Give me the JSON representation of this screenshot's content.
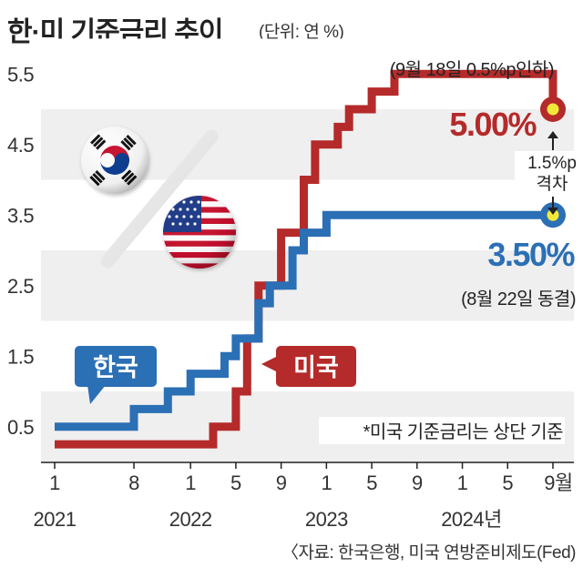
{
  "header": {
    "title": "한·미 기준금리 추이",
    "unit": "(단위: 연 %)"
  },
  "footer": {
    "source": "〈자료: 한국은행, 미국 연방준비제도(Fed)"
  },
  "colors": {
    "korea": "#2b6fb5",
    "usa": "#b52a2a",
    "band": "#efefef",
    "marker_fill": "#f2e83a"
  },
  "chart_data": {
    "type": "line",
    "title": "한·미 기준금리 추이",
    "ylabel": "(단위: 연 %)",
    "ylim": [
      0,
      6
    ],
    "y_ticks": [
      "0.5",
      "1.5",
      "2.5",
      "3.5",
      "4.5",
      "5.5"
    ],
    "x_ticks": [
      {
        "label": "1",
        "year": "2021",
        "date": "2021-01"
      },
      {
        "label": "8",
        "year": "",
        "date": "2021-08"
      },
      {
        "label": "1",
        "year": "2022",
        "date": "2022-01"
      },
      {
        "label": "5",
        "year": "",
        "date": "2022-05"
      },
      {
        "label": "9",
        "year": "",
        "date": "2022-09"
      },
      {
        "label": "1",
        "year": "2023",
        "date": "2023-01"
      },
      {
        "label": "5",
        "year": "",
        "date": "2023-05"
      },
      {
        "label": "9",
        "year": "",
        "date": "2023-09"
      },
      {
        "label": "1",
        "year": "2024년",
        "date": "2024-01"
      },
      {
        "label": "5",
        "year": "",
        "date": "2024-05"
      },
      {
        "label": "9월",
        "year": "",
        "date": "2024-09"
      }
    ],
    "series": [
      {
        "name": "한국",
        "color": "#2b6fb5",
        "points": [
          {
            "date": "2021-01",
            "value": 0.5
          },
          {
            "date": "2021-08",
            "value": 0.75
          },
          {
            "date": "2021-11",
            "value": 1.0
          },
          {
            "date": "2022-01",
            "value": 1.25
          },
          {
            "date": "2022-04",
            "value": 1.5
          },
          {
            "date": "2022-05",
            "value": 1.75
          },
          {
            "date": "2022-07",
            "value": 2.25
          },
          {
            "date": "2022-08",
            "value": 2.5
          },
          {
            "date": "2022-10",
            "value": 3.0
          },
          {
            "date": "2022-11",
            "value": 3.25
          },
          {
            "date": "2023-01",
            "value": 3.5
          },
          {
            "date": "2024-09",
            "value": 3.5
          }
        ]
      },
      {
        "name": "미국",
        "color": "#b52a2a",
        "points": [
          {
            "date": "2021-01",
            "value": 0.25
          },
          {
            "date": "2022-03",
            "value": 0.5
          },
          {
            "date": "2022-05",
            "value": 1.0
          },
          {
            "date": "2022-06",
            "value": 1.75
          },
          {
            "date": "2022-07",
            "value": 2.5
          },
          {
            "date": "2022-09",
            "value": 3.25
          },
          {
            "date": "2022-11",
            "value": 4.0
          },
          {
            "date": "2022-12",
            "value": 4.5
          },
          {
            "date": "2023-02",
            "value": 4.75
          },
          {
            "date": "2023-03",
            "value": 5.0
          },
          {
            "date": "2023-05",
            "value": 5.25
          },
          {
            "date": "2023-07",
            "value": 5.5
          },
          {
            "date": "2024-09",
            "value": 5.5
          },
          {
            "date": "2024-09",
            "value": 5.0
          }
        ]
      }
    ],
    "annotations": {
      "usa_value": "5.00%",
      "korea_value": "3.50%",
      "usa_event": "(9월 18일 0.5%p인하)",
      "korea_event": "(8월 22일 동결)",
      "gap_line1": "1.5%p",
      "gap_line2": "격차",
      "note": "*미국 기준금리는 상단 기준"
    }
  }
}
